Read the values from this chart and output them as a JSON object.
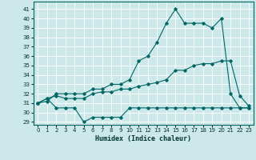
{
  "xlabel": "Humidex (Indice chaleur)",
  "bg_color": "#cce8e8",
  "grid_color": "#ffffff",
  "line_color": "#006666",
  "xlim": [
    -0.5,
    23.5
  ],
  "ylim": [
    28.7,
    41.8
  ],
  "yticks": [
    29,
    30,
    31,
    32,
    33,
    34,
    35,
    36,
    37,
    38,
    39,
    40,
    41
  ],
  "xticks": [
    0,
    1,
    2,
    3,
    4,
    5,
    6,
    7,
    8,
    9,
    10,
    11,
    12,
    13,
    14,
    15,
    16,
    17,
    18,
    19,
    20,
    21,
    22,
    23
  ],
  "series1_x": [
    0,
    1,
    2,
    3,
    4,
    5,
    6,
    7,
    8,
    9,
    10,
    11,
    12,
    13,
    14,
    15,
    16,
    17,
    18,
    19,
    20,
    21,
    22,
    23
  ],
  "series1_y": [
    31.0,
    31.5,
    30.5,
    30.5,
    30.5,
    29.0,
    29.5,
    29.5,
    29.5,
    29.5,
    30.5,
    30.5,
    30.5,
    30.5,
    30.5,
    30.5,
    30.5,
    30.5,
    30.5,
    30.5,
    30.5,
    30.5,
    30.5,
    30.5
  ],
  "series2_x": [
    0,
    1,
    2,
    3,
    4,
    5,
    6,
    7,
    8,
    9,
    10,
    11,
    12,
    13,
    14,
    15,
    16,
    17,
    18,
    19,
    20,
    21,
    22,
    23
  ],
  "series2_y": [
    31.0,
    31.5,
    31.8,
    31.5,
    31.5,
    31.5,
    32.0,
    32.2,
    32.2,
    32.5,
    32.5,
    32.8,
    33.0,
    33.2,
    33.5,
    34.5,
    34.5,
    35.0,
    35.2,
    35.2,
    35.5,
    35.5,
    31.8,
    30.7
  ],
  "series3_x": [
    0,
    1,
    2,
    3,
    4,
    5,
    6,
    7,
    8,
    9,
    10,
    11,
    12,
    13,
    14,
    15,
    16,
    17,
    18,
    19,
    20,
    21,
    22,
    23
  ],
  "series3_y": [
    31.0,
    31.2,
    32.0,
    32.0,
    32.0,
    32.0,
    32.5,
    32.5,
    33.0,
    33.0,
    33.5,
    35.5,
    36.0,
    37.5,
    39.5,
    41.0,
    39.5,
    39.5,
    39.5,
    39.0,
    40.0,
    32.0,
    30.5,
    30.5
  ]
}
